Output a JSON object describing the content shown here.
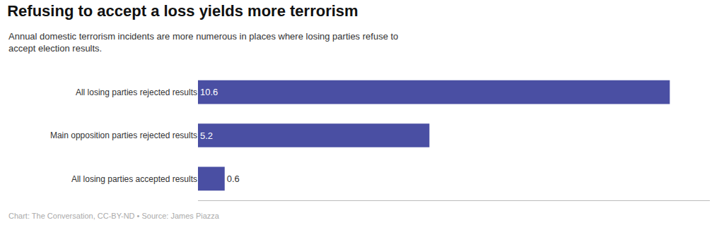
{
  "chart_data": {
    "type": "bar",
    "orientation": "horizontal",
    "title": "Refusing to accept a loss yields more terrorism",
    "subtitle": "Annual domestic terrorism incidents are more numerous in places where losing parties refuse to\naccept election results.",
    "annotations": [
      "Chart: The Conversation, CC-BY-ND • Source: James Piazza"
    ],
    "categories": [
      "All losing parties accepted results",
      "Main opposition parties rejected results",
      "All losing parties rejected results"
    ],
    "values": [
      0.6,
      5.2,
      10.6
    ],
    "color": "#4a4fa3",
    "xlim": [
      0,
      11.5
    ],
    "data_labels": true,
    "tick_labels": "y",
    "grid": false
  }
}
